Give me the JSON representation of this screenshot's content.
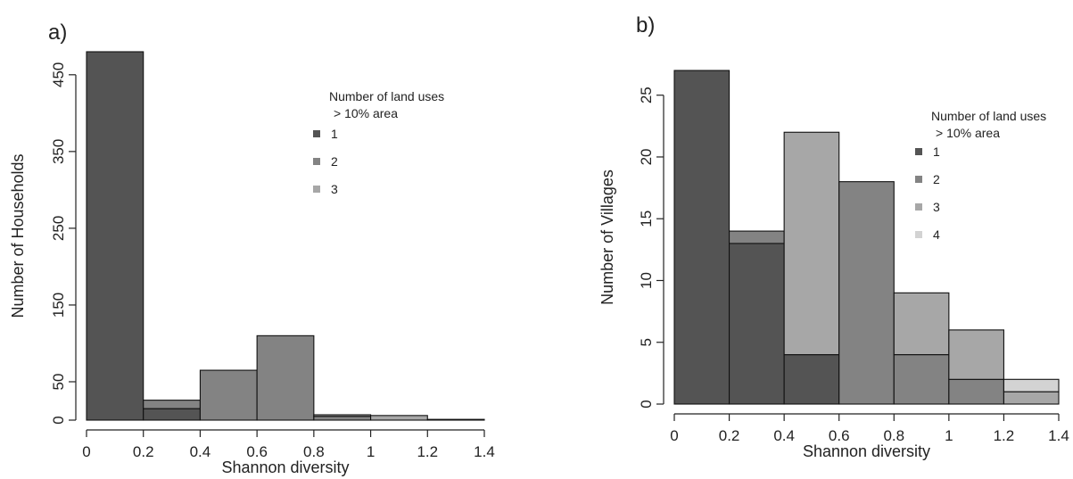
{
  "colors": {
    "1": "#545454",
    "2": "#838383",
    "3": "#a7a7a7",
    "4": "#d3d3d3",
    "axis": "#222222",
    "bar_edge": "#111111"
  },
  "chart_data": [
    {
      "type": "bar",
      "panel_label": "a)",
      "xlabel": "Shannon diversity",
      "ylabel": "Number of Households",
      "xlim": [
        0,
        1.4
      ],
      "ylim": [
        0,
        480
      ],
      "x_ticks": [
        "0",
        "0.2",
        "0.4",
        "0.6",
        "0.8",
        "1",
        "1.2",
        "1.4"
      ],
      "y_ticks": [
        "0",
        "50",
        "150",
        "250",
        "350",
        "450"
      ],
      "y_tick_values": [
        0,
        50,
        150,
        250,
        350,
        450
      ],
      "grid": false,
      "legend": {
        "title_line1": "Number of land uses",
        "title_line2": "> 10% area",
        "position": "top-right",
        "entries": [
          "1",
          "2",
          "3"
        ]
      },
      "bins": [
        [
          0,
          0.2
        ],
        [
          0.2,
          0.4
        ],
        [
          0.4,
          0.6
        ],
        [
          0.6,
          0.8
        ],
        [
          0.8,
          1.0
        ],
        [
          1.0,
          1.2
        ],
        [
          1.2,
          1.4
        ]
      ],
      "series": [
        {
          "name": "1",
          "values": [
            480,
            15,
            0,
            0,
            0,
            0,
            0
          ]
        },
        {
          "name": "2",
          "values": [
            0,
            11,
            65,
            110,
            5,
            0,
            0
          ]
        },
        {
          "name": "3",
          "values": [
            0,
            0,
            0,
            0,
            2,
            6,
            1
          ]
        }
      ]
    },
    {
      "type": "bar",
      "panel_label": "b)",
      "xlabel": "Shannon diversity",
      "ylabel": "Number of Villages",
      "xlim": [
        0,
        1.4
      ],
      "ylim": [
        0,
        28
      ],
      "x_ticks": [
        "0",
        "0.2",
        "0.4",
        "0.6",
        "0.8",
        "1",
        "1.2",
        "1.4"
      ],
      "y_ticks": [
        "0",
        "5",
        "10",
        "15",
        "20",
        "25"
      ],
      "y_tick_values": [
        0,
        5,
        10,
        15,
        20,
        25
      ],
      "grid": false,
      "legend": {
        "title_line1": "Number of land uses",
        "title_line2": "> 10% area",
        "position": "top-right",
        "entries": [
          "1",
          "2",
          "3",
          "4"
        ]
      },
      "bins": [
        [
          0,
          0.2
        ],
        [
          0.2,
          0.4
        ],
        [
          0.4,
          0.6
        ],
        [
          0.6,
          0.8
        ],
        [
          0.8,
          1.0
        ],
        [
          1.0,
          1.2
        ],
        [
          1.2,
          1.4
        ]
      ],
      "series": [
        {
          "name": "1",
          "values": [
            27,
            13,
            4,
            0,
            0,
            0,
            0
          ]
        },
        {
          "name": "2",
          "values": [
            0,
            1,
            0,
            18,
            4,
            2,
            0
          ]
        },
        {
          "name": "3",
          "values": [
            0,
            0,
            18,
            0,
            5,
            4,
            1
          ]
        },
        {
          "name": "4",
          "values": [
            0,
            0,
            0,
            0,
            0,
            0,
            1
          ]
        }
      ]
    }
  ]
}
